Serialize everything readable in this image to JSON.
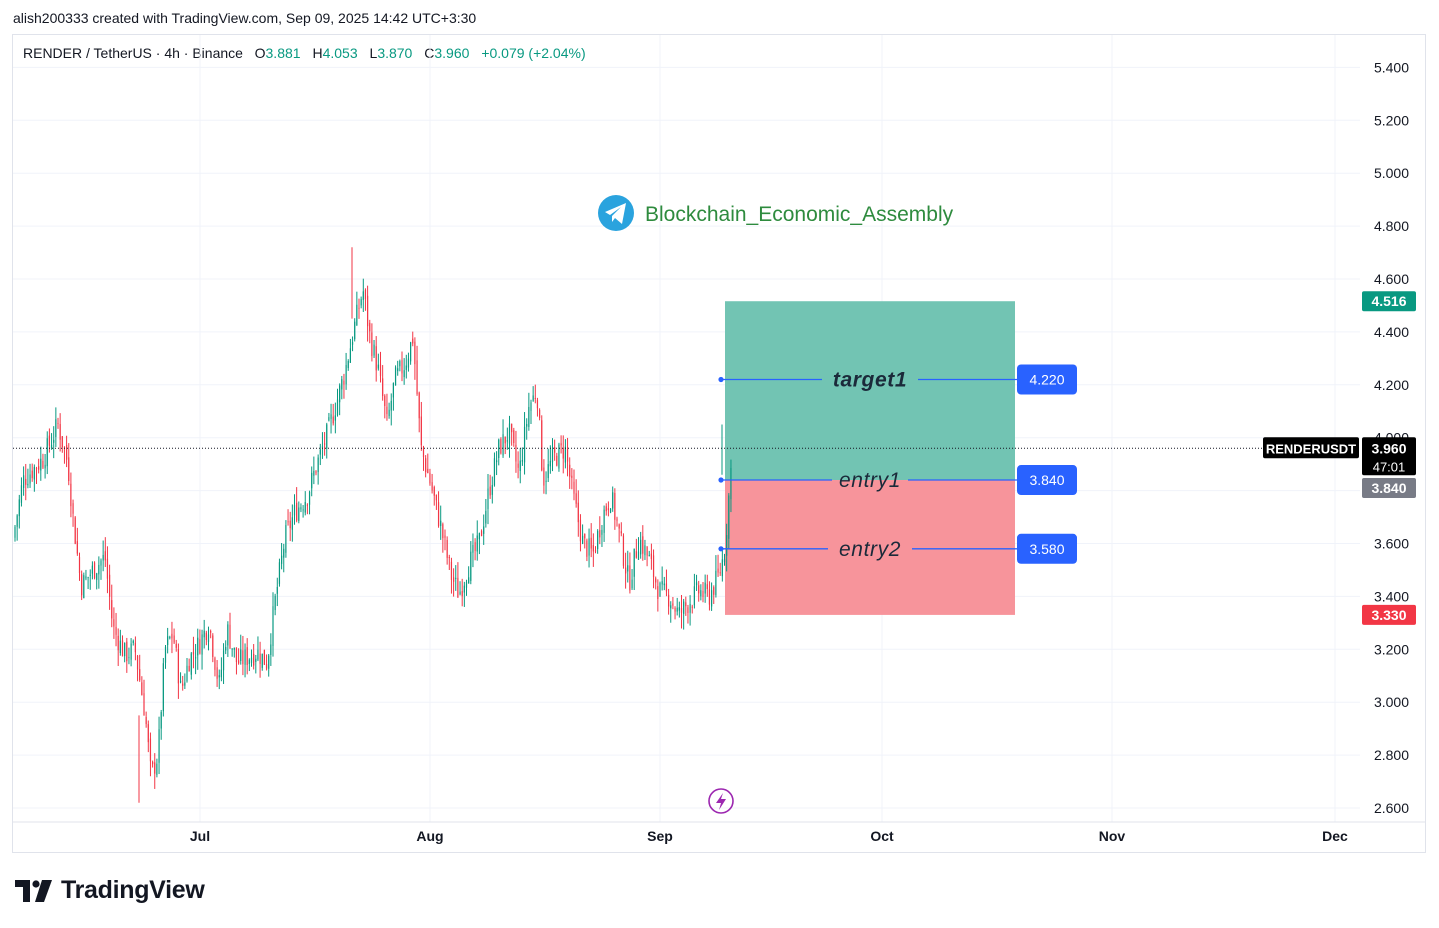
{
  "header": {
    "attribution": "alish200333 created with TradingView.com, Sep 09, 2025 14:42 UTC+3:30"
  },
  "symbol": {
    "name": "RENDER / TetherUS · 4h · Binance",
    "o_label": "O",
    "o_value": "3.881",
    "h_label": "H",
    "h_value": "4.053",
    "l_label": "L",
    "l_value": "3.870",
    "c_label": "C",
    "c_value": "3.960",
    "change": "+0.079 (+2.04%)"
  },
  "watermark": {
    "text": "Blockchain_Economic_Assembly",
    "icon": "telegram-icon"
  },
  "brand": {
    "name": "TradingView",
    "icon": "tradingview-logo-icon"
  },
  "colors": {
    "up": "#089981",
    "down": "#f23645",
    "target_zone": "#72c4b3",
    "stop_zone": "#f7949b",
    "level_line": "#2962ff",
    "watermark_text": "#2e8b3e"
  },
  "chart_data": {
    "type": "candlestick",
    "symbol": "RENDERUSDT",
    "timeframe": "4h",
    "exchange": "Binance",
    "x_ticks": [
      "Jul",
      "Aug",
      "Sep",
      "Oct",
      "Nov",
      "Dec"
    ],
    "y_ticks": [
      "5.400",
      "5.200",
      "5.000",
      "4.800",
      "4.600",
      "4.400",
      "4.200",
      "4.000",
      "3.800",
      "3.600",
      "3.400",
      "3.200",
      "3.000",
      "2.800",
      "2.600"
    ],
    "ylim": [
      2.56,
      5.5
    ],
    "grid": true,
    "price_path": [
      [
        0,
        3.62
      ],
      [
        10,
        3.84
      ],
      [
        30,
        3.92
      ],
      [
        45,
        4.05
      ],
      [
        55,
        3.9
      ],
      [
        60,
        3.7
      ],
      [
        68,
        3.44
      ],
      [
        80,
        3.5
      ],
      [
        92,
        3.55
      ],
      [
        100,
        3.28
      ],
      [
        112,
        3.18
      ],
      [
        122,
        3.2
      ],
      [
        132,
        2.96
      ],
      [
        138,
        2.72
      ],
      [
        145,
        2.8
      ],
      [
        152,
        3.2
      ],
      [
        160,
        3.26
      ],
      [
        168,
        3.04
      ],
      [
        176,
        3.16
      ],
      [
        186,
        3.22
      ],
      [
        196,
        3.3
      ],
      [
        206,
        3.06
      ],
      [
        214,
        3.28
      ],
      [
        224,
        3.15
      ],
      [
        234,
        3.17
      ],
      [
        244,
        3.19
      ],
      [
        254,
        3.15
      ],
      [
        262,
        3.38
      ],
      [
        272,
        3.62
      ],
      [
        282,
        3.72
      ],
      [
        294,
        3.78
      ],
      [
        304,
        3.9
      ],
      [
        314,
        4.01
      ],
      [
        324,
        4.14
      ],
      [
        332,
        4.25
      ],
      [
        342,
        4.43
      ],
      [
        350,
        4.56
      ],
      [
        357,
        4.38
      ],
      [
        365,
        4.26
      ],
      [
        374,
        4.05
      ],
      [
        382,
        4.22
      ],
      [
        392,
        4.28
      ],
      [
        400,
        4.38
      ],
      [
        408,
        3.96
      ],
      [
        418,
        3.82
      ],
      [
        428,
        3.66
      ],
      [
        438,
        3.48
      ],
      [
        446,
        3.41
      ],
      [
        456,
        3.52
      ],
      [
        466,
        3.6
      ],
      [
        476,
        3.8
      ],
      [
        486,
        3.96
      ],
      [
        496,
        4.02
      ],
      [
        506,
        3.86
      ],
      [
        516,
        4.12
      ],
      [
        524,
        4.18
      ],
      [
        530,
        3.84
      ],
      [
        540,
        3.92
      ],
      [
        552,
        3.96
      ],
      [
        560,
        3.78
      ],
      [
        570,
        3.6
      ],
      [
        580,
        3.56
      ],
      [
        590,
        3.71
      ],
      [
        598,
        3.78
      ],
      [
        606,
        3.64
      ],
      [
        616,
        3.45
      ],
      [
        626,
        3.62
      ],
      [
        636,
        3.54
      ],
      [
        646,
        3.42
      ],
      [
        656,
        3.4
      ],
      [
        666,
        3.33
      ],
      [
        676,
        3.38
      ],
      [
        686,
        3.42
      ],
      [
        696,
        3.4
      ],
      [
        706,
        3.48
      ],
      [
        712,
        3.58
      ],
      [
        717,
        3.84
      ],
      [
        720,
        3.96
      ]
    ],
    "range": {
      "high": 4.72,
      "low": 2.62
    },
    "last_price": "3.960",
    "countdown": "47:01",
    "price_labels": [
      {
        "value": 4.516,
        "label": "4.516",
        "kind": "target-top"
      },
      {
        "value": 3.84,
        "label": "3.840",
        "kind": "entry"
      },
      {
        "value": 3.33,
        "label": "3.330",
        "kind": "stop"
      }
    ],
    "position": {
      "type": "long",
      "entry": 3.84,
      "target": 4.516,
      "stop": 3.33
    },
    "levels": [
      {
        "name": "target1",
        "value": 4.22,
        "label": "4.220"
      },
      {
        "name": "entry1",
        "value": 3.84,
        "label": "3.840"
      },
      {
        "name": "entry2",
        "value": 3.58,
        "label": "3.580"
      }
    ]
  }
}
